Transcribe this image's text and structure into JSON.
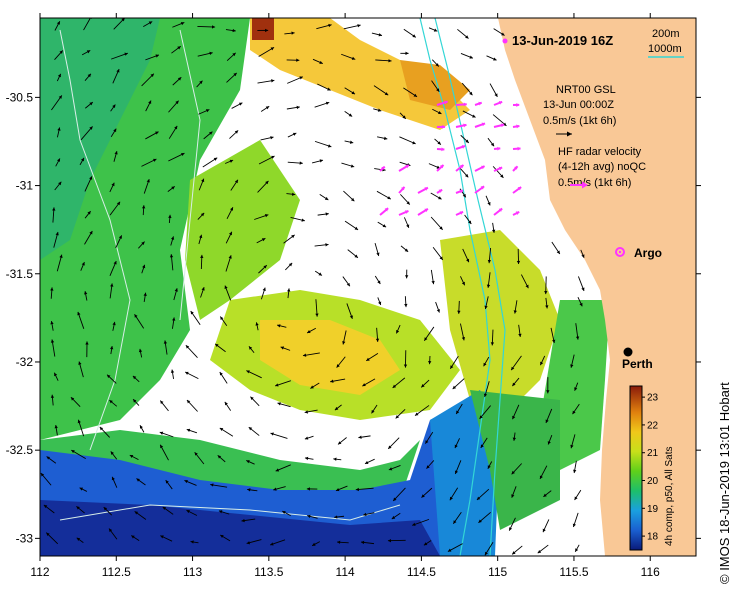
{
  "title": "13-Jun-2019 16Z",
  "legend": {
    "isobath_shallow": "200m",
    "isobath_deep": "1000m",
    "shallow_color": "#4a4a4a",
    "deep_color": "#33d6d6"
  },
  "model_vectors": {
    "line1": "NRT00 GSL",
    "line2": "13-Jun 00:00Z",
    "scale": "0.5m/s (1kt 6h)"
  },
  "radar_vectors": {
    "line1": "HF radar velocity",
    "line2": "(4-12h avg) noQC",
    "scale": "0.5m/s (1kt 6h)",
    "color": "#ff33ff"
  },
  "argo_label": "Argo",
  "place_label": "Perth",
  "colorbar": {
    "title": "4h comp, p50, All Sats",
    "ticks": [
      "18",
      "19",
      "20",
      "21",
      "22",
      "23"
    ],
    "min": 17.5,
    "max": 23.4
  },
  "credit": "© IMOS 18-Jun-2019 13:01 Hobart",
  "map_data": {
    "lon_ticks": [
      "112",
      "112.5",
      "113",
      "113.5",
      "114",
      "114.5",
      "115",
      "115.5",
      "116"
    ],
    "lat_ticks": [
      "-30.5",
      "-31",
      "-31.5",
      "-32",
      "-32.5",
      "-33"
    ],
    "lon_range": [
      112,
      116.3
    ],
    "lat_range": [
      -33.1,
      -30.05
    ],
    "land_color": "#f9c896"
  }
}
